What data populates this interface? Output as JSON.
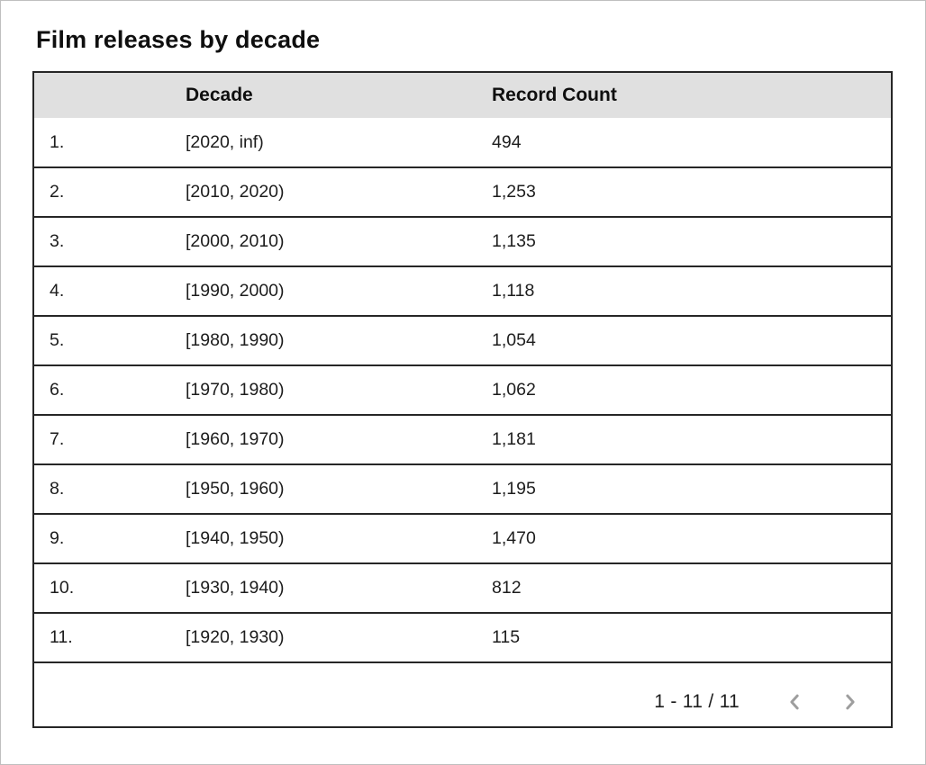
{
  "title": "Film releases by decade",
  "table": {
    "columns": [
      "Decade",
      "Record Count"
    ],
    "rows": [
      {
        "index": "1.",
        "decade": "[2020, inf)",
        "count": "494"
      },
      {
        "index": "2.",
        "decade": "[2010, 2020)",
        "count": "1,253"
      },
      {
        "index": "3.",
        "decade": "[2000, 2010)",
        "count": "1,135"
      },
      {
        "index": "4.",
        "decade": "[1990, 2000)",
        "count": "1,118"
      },
      {
        "index": "5.",
        "decade": "[1980, 1990)",
        "count": "1,054"
      },
      {
        "index": "6.",
        "decade": "[1970, 1980)",
        "count": "1,062"
      },
      {
        "index": "7.",
        "decade": "[1960, 1970)",
        "count": "1,181"
      },
      {
        "index": "8.",
        "decade": "[1950, 1960)",
        "count": "1,195"
      },
      {
        "index": "9.",
        "decade": "[1940, 1950)",
        "count": "1,470"
      },
      {
        "index": "10.",
        "decade": "[1930, 1940)",
        "count": "812"
      },
      {
        "index": "11.",
        "decade": "[1920, 1930)",
        "count": "115"
      }
    ]
  },
  "pagination": {
    "range_label": "1 - 11 / 11",
    "prev_icon": "chevron-left",
    "next_icon": "chevron-right"
  },
  "colors": {
    "header_bg": "#e0e0e0",
    "border": "#262626",
    "text": "#1d1d1d",
    "chevron": "#9e9e9e",
    "frame": "#bfbfbf"
  },
  "chart_data": {
    "type": "table",
    "title": "Film releases by decade",
    "columns": [
      "Decade",
      "Record Count"
    ],
    "rows": [
      [
        "[2020, inf)",
        494
      ],
      [
        "[2010, 2020)",
        1253
      ],
      [
        "[2000, 2010)",
        1135
      ],
      [
        "[1990, 2000)",
        1118
      ],
      [
        "[1980, 1990)",
        1054
      ],
      [
        "[1970, 1980)",
        1062
      ],
      [
        "[1960, 1970)",
        1181
      ],
      [
        "[1950, 1960)",
        1195
      ],
      [
        "[1940, 1950)",
        1470
      ],
      [
        "[1930, 1940)",
        812
      ],
      [
        "[1920, 1930)",
        115
      ]
    ],
    "pagination": "1 - 11 / 11"
  }
}
